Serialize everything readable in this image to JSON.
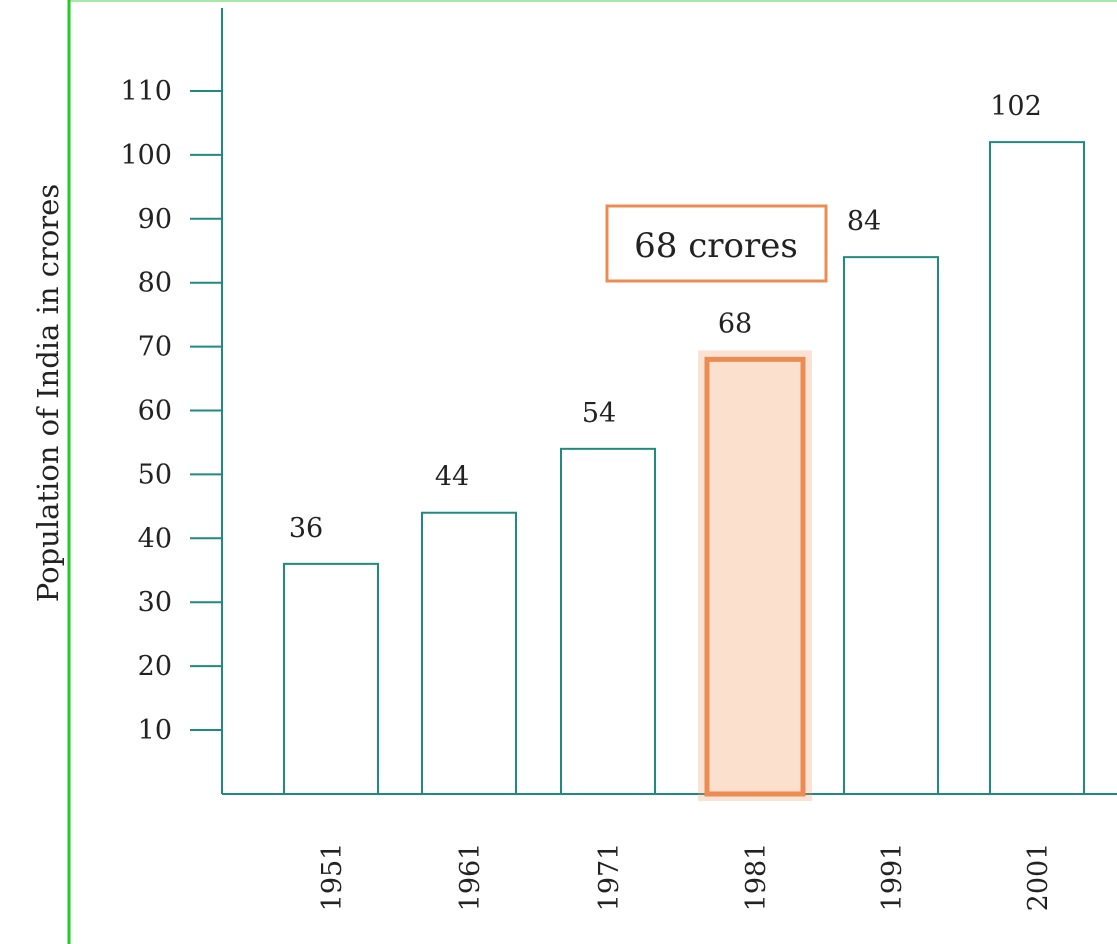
{
  "chart_data": {
    "type": "bar",
    "categories": [
      "1951",
      "1961",
      "1971",
      "1981",
      "1991",
      "2001"
    ],
    "values": [
      36,
      44,
      54,
      68,
      84,
      102
    ],
    "data_labels": [
      "36",
      "44",
      "54",
      "68",
      "84",
      "102"
    ],
    "ylabel": "Population of India in crores",
    "xlabel": "",
    "title": "",
    "yticks": [
      10,
      20,
      30,
      40,
      50,
      60,
      70,
      80,
      90,
      100,
      110
    ],
    "ylim": [
      0,
      115
    ],
    "highlight_index": 3,
    "annotation": {
      "text": "68 crores",
      "category": "1981"
    },
    "grid": false,
    "colors": {
      "bar_stroke": "#1f8b7e",
      "axis": "#1f8b7e",
      "highlight_stroke": "#ec8c52",
      "highlight_fill": "#fbe0cd",
      "annotation_border": "#ec8c52",
      "left_rule": "#22cc22",
      "top_rule": "#a8e8a8",
      "text": "#222222"
    }
  }
}
